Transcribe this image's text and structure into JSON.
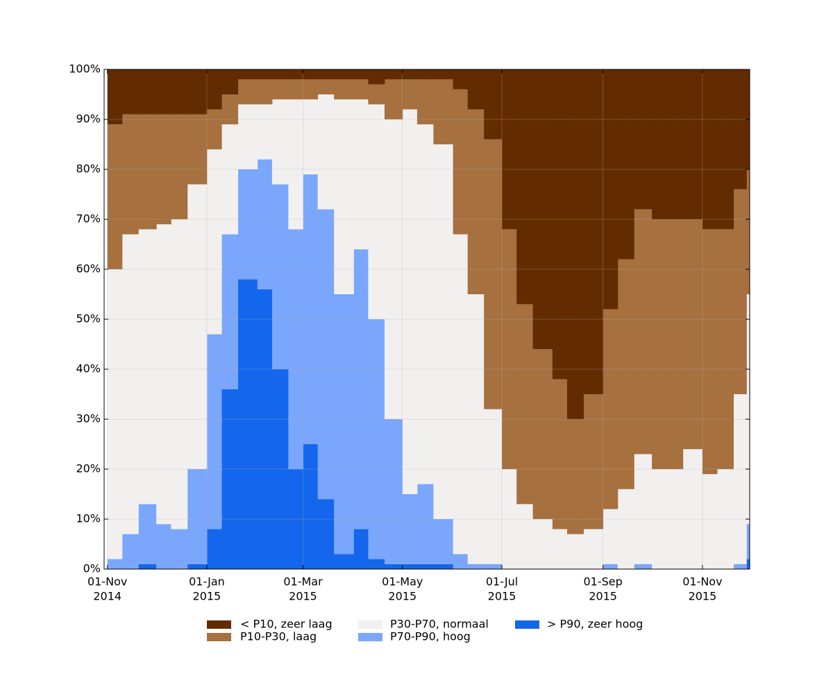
{
  "chart_data": {
    "type": "stacked_step_area",
    "x": [
      "2014-11-01",
      "2014-11-10",
      "2014-11-20",
      "2014-12-01",
      "2014-12-10",
      "2014-12-20",
      "2015-01-01",
      "2015-01-10",
      "2015-01-20",
      "2015-02-01",
      "2015-02-10",
      "2015-02-20",
      "2015-03-01",
      "2015-03-10",
      "2015-03-20",
      "2015-04-01",
      "2015-04-10",
      "2015-04-20",
      "2015-05-01",
      "2015-05-10",
      "2015-05-20",
      "2015-06-01",
      "2015-06-10",
      "2015-06-20",
      "2015-07-01",
      "2015-07-10",
      "2015-07-20",
      "2015-08-01",
      "2015-08-10",
      "2015-08-20",
      "2015-09-01",
      "2015-09-10",
      "2015-09-20",
      "2015-10-01",
      "2015-10-10",
      "2015-10-20",
      "2015-11-01",
      "2015-11-10",
      "2015-11-20",
      "2015-11-28"
    ],
    "series": [
      {
        "name": "< P10, zeer laag",
        "color": "#632b00",
        "values": [
          11,
          9,
          9,
          9,
          9,
          9,
          8,
          5,
          2,
          2,
          2,
          2,
          2,
          2,
          2,
          2,
          3,
          2,
          2,
          2,
          2,
          4,
          8,
          14,
          32,
          47,
          56,
          62,
          70,
          65,
          48,
          38,
          28,
          30,
          30,
          30,
          32,
          32,
          24,
          20
        ]
      },
      {
        "name": "P10-P30, laag",
        "color": "#a6703f",
        "values": [
          29,
          24,
          23,
          22,
          21,
          14,
          8,
          6,
          5,
          5,
          4,
          4,
          4,
          3,
          4,
          4,
          4,
          8,
          6,
          9,
          13,
          29,
          37,
          54,
          48,
          40,
          34,
          30,
          23,
          27,
          40,
          46,
          49,
          50,
          50,
          46,
          49,
          48,
          41,
          25
        ]
      },
      {
        "name": "P30-P70, normaal",
        "color": "#f2f0ef",
        "values": [
          58,
          60,
          55,
          60,
          62,
          57,
          37,
          22,
          13,
          11,
          17,
          26,
          15,
          23,
          39,
          30,
          43,
          60,
          77,
          72,
          75,
          64,
          54,
          31,
          20,
          13,
          10,
          8,
          7,
          8,
          11,
          16,
          22,
          20,
          20,
          24,
          19,
          20,
          34,
          46
        ]
      },
      {
        "name": "P70-P90, hoog",
        "color": "#7aa6fc",
        "values": [
          2,
          7,
          12,
          9,
          8,
          19,
          39,
          31,
          22,
          26,
          37,
          48,
          54,
          58,
          52,
          56,
          48,
          29,
          14,
          16,
          9,
          3,
          1,
          1,
          0,
          0,
          0,
          0,
          0,
          0,
          1,
          0,
          1,
          0,
          0,
          0,
          0,
          0,
          1,
          7
        ]
      },
      {
        "name": "> P90, zeer hoog",
        "color": "#1466ec",
        "values": [
          0,
          0,
          1,
          0,
          0,
          1,
          8,
          36,
          58,
          56,
          40,
          20,
          25,
          14,
          3,
          8,
          2,
          1,
          1,
          1,
          1,
          0,
          0,
          0,
          0,
          0,
          0,
          0,
          0,
          0,
          0,
          0,
          0,
          0,
          0,
          0,
          0,
          0,
          0,
          2
        ]
      }
    ],
    "xlim": [
      "2014-10-30",
      "2015-11-30"
    ],
    "xticks": [
      {
        "value": "2014-11-01",
        "label": [
          "01-Nov",
          "2014"
        ]
      },
      {
        "value": "2015-01-01",
        "label": [
          "01-Jan",
          "2015"
        ]
      },
      {
        "value": "2015-03-01",
        "label": [
          "01-Mar",
          "2015"
        ]
      },
      {
        "value": "2015-05-01",
        "label": [
          "01-May",
          "2015"
        ]
      },
      {
        "value": "2015-07-01",
        "label": [
          "01-Jul",
          "2015"
        ]
      },
      {
        "value": "2015-09-01",
        "label": [
          "01-Sep",
          "2015"
        ]
      },
      {
        "value": "2015-11-01",
        "label": [
          "01-Nov",
          "2015"
        ]
      }
    ],
    "ylim": [
      0,
      100
    ],
    "yticks": [
      {
        "value": 0,
        "label": "0%"
      },
      {
        "value": 10,
        "label": "10%"
      },
      {
        "value": 20,
        "label": "20%"
      },
      {
        "value": 30,
        "label": "30%"
      },
      {
        "value": 40,
        "label": "40%"
      },
      {
        "value": 50,
        "label": "50%"
      },
      {
        "value": 60,
        "label": "60%"
      },
      {
        "value": 70,
        "label": "70%"
      },
      {
        "value": 80,
        "label": "80%"
      },
      {
        "value": 90,
        "label": "90%"
      },
      {
        "value": 100,
        "label": "100%"
      }
    ],
    "grid": true
  }
}
